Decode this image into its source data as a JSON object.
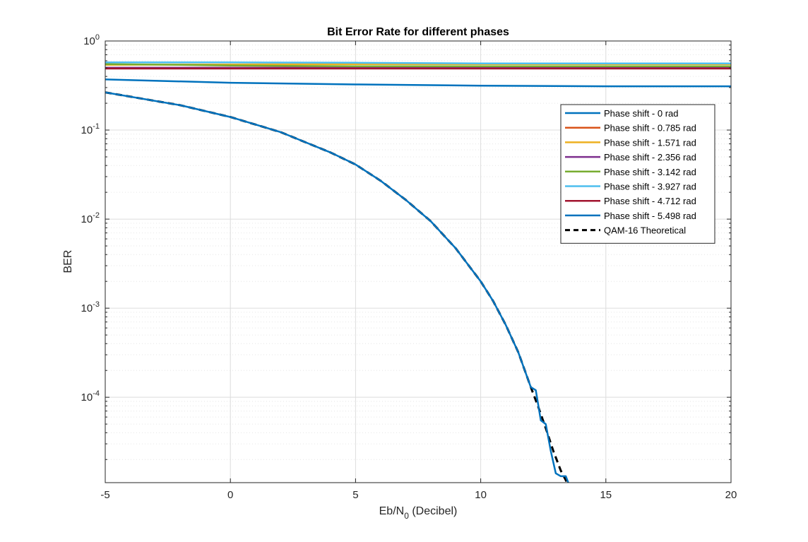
{
  "chart_data": {
    "type": "line",
    "title": "Bit Error Rate for different phases",
    "xlabel": {
      "main": "Eb/N",
      "sub": "0",
      "rest": " (Decibel)"
    },
    "ylabel": "BER",
    "xlim": [
      -5,
      20
    ],
    "ylim": [
      1.1e-05,
      1
    ],
    "yscale": "log",
    "grid": true,
    "minor_grid": true,
    "legend_position": "top-right",
    "x_ticks": [
      -5,
      0,
      5,
      10,
      15,
      20
    ],
    "y_ticks": [
      {
        "value": 1,
        "base": "10",
        "exp": "0"
      },
      {
        "value": 0.1,
        "base": "10",
        "exp": "-1"
      },
      {
        "value": 0.01,
        "base": "10",
        "exp": "-2"
      },
      {
        "value": 0.001,
        "base": "10",
        "exp": "-3"
      },
      {
        "value": 0.0001,
        "base": "10",
        "exp": "-4"
      }
    ],
    "series": [
      {
        "name": "Phase shift - 0 rad",
        "color": "#0072BD",
        "style": "solid",
        "x": [
          -5,
          -2,
          0,
          2,
          4,
          5,
          6,
          7,
          8,
          9,
          10,
          10.5,
          11,
          11.5,
          12,
          12.2,
          12.4,
          12.6,
          12.8,
          13,
          13.2,
          13.4,
          13.5
        ],
        "y": [
          0.265,
          0.19,
          0.14,
          0.095,
          0.056,
          0.041,
          0.027,
          0.0165,
          0.0095,
          0.0047,
          0.002,
          0.0012,
          0.00065,
          0.00032,
          0.00013,
          0.00012,
          5.5e-05,
          5e-05,
          2.5e-05,
          1.4e-05,
          1.3e-05,
          1.3e-05,
          1.1e-05
        ]
      },
      {
        "name": "Phase shift - 0.785 rad",
        "color": "#D95319",
        "style": "solid",
        "x": [
          -5,
          0,
          5,
          10,
          15,
          20
        ],
        "y": [
          0.5,
          0.5,
          0.5,
          0.5,
          0.5,
          0.5
        ]
      },
      {
        "name": "Phase shift - 1.571 rad",
        "color": "#EDB120",
        "style": "solid",
        "x": [
          -5,
          0,
          5,
          10,
          15,
          20
        ],
        "y": [
          0.54,
          0.545,
          0.55,
          0.55,
          0.55,
          0.55
        ]
      },
      {
        "name": "Phase shift - 2.356 rad",
        "color": "#7E2F8E",
        "style": "solid",
        "x": [
          -5,
          0,
          5,
          10,
          15,
          20
        ],
        "y": [
          0.5,
          0.5,
          0.5,
          0.5,
          0.5,
          0.5
        ]
      },
      {
        "name": "Phase shift - 3.142 rad",
        "color": "#77AC30",
        "style": "solid",
        "x": [
          -5,
          -2,
          0,
          5,
          10,
          15,
          20
        ],
        "y": [
          0.55,
          0.54,
          0.53,
          0.52,
          0.52,
          0.52,
          0.52
        ]
      },
      {
        "name": "Phase shift - 3.927 rad",
        "color": "#4DBEEE",
        "style": "solid",
        "x": [
          -5,
          0,
          5,
          10,
          15,
          20
        ],
        "y": [
          0.575,
          0.575,
          0.57,
          0.56,
          0.56,
          0.56
        ]
      },
      {
        "name": "Phase shift - 4.712 rad",
        "color": "#A2142F",
        "style": "solid",
        "x": [
          -5,
          0,
          5,
          10,
          15,
          20
        ],
        "y": [
          0.49,
          0.49,
          0.49,
          0.49,
          0.49,
          0.49
        ]
      },
      {
        "name": "Phase shift - 5.498 rad",
        "color": "#0072BD",
        "style": "solid",
        "x": [
          -5,
          0,
          5,
          10,
          15,
          20
        ],
        "y": [
          0.37,
          0.34,
          0.325,
          0.315,
          0.31,
          0.31
        ]
      },
      {
        "name": "QAM-16 Theoretical",
        "color": "#000000",
        "style": "dashed",
        "x": [
          -5,
          -2,
          0,
          2,
          4,
          5,
          6,
          7,
          8,
          9,
          10,
          10.5,
          11,
          11.5,
          12,
          12.3,
          12.6,
          12.9,
          13.2,
          13.45
        ],
        "y": [
          0.265,
          0.19,
          0.14,
          0.095,
          0.056,
          0.041,
          0.027,
          0.0165,
          0.0095,
          0.0047,
          0.002,
          0.0012,
          0.00065,
          0.00032,
          0.00013,
          7.8e-05,
          4.5e-05,
          2.5e-05,
          1.5e-05,
          1.1e-05
        ]
      }
    ]
  }
}
